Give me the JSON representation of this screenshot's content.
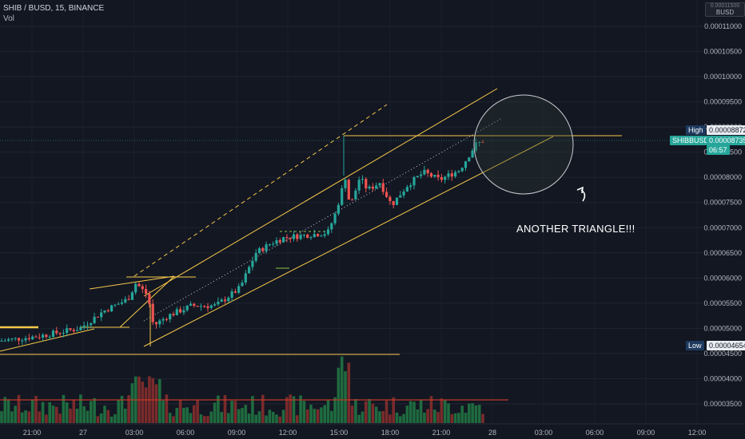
{
  "header": {
    "symbol": "SHIB / BUSD, 15, BINANCE",
    "volume_label": "Vol"
  },
  "annotation": {
    "text": "ANOTHER TRIANGLE!!!"
  },
  "price_axis": {
    "currency": "BUSD",
    "currency_top": "0.00011500"
  },
  "tags": {
    "high_label": "High",
    "high_value": "0.00008872",
    "symbol_label": "SHIBBUSD",
    "last_value": "0.00008735",
    "countdown": "06:57",
    "low_label": "Low",
    "low_value": "0.00004654"
  },
  "colors": {
    "up": "#26a69a",
    "down": "#ef5350",
    "trendline": "#f7c948",
    "vol_up": "#1f6b3f",
    "vol_down": "#7a2b2b",
    "bg": "#131722"
  },
  "chart_data": {
    "type": "candlestick",
    "title": "SHIB / BUSD, 15, BINANCE",
    "y_ticks": [
      "0.00011000",
      "0.00010500",
      "0.00010000",
      "0.00009500",
      "0.00009000",
      "0.00008500",
      "0.00008000",
      "0.00007500",
      "0.00007000",
      "0.00006500",
      "0.00006000",
      "0.00005500",
      "0.00005000",
      "0.00004500",
      "0.00004000",
      "0.00003500"
    ],
    "y_tick_values": [
      0.00011,
      0.000105,
      0.0001,
      9.5e-05,
      9e-05,
      8.5e-05,
      8e-05,
      7.5e-05,
      7e-05,
      6.5e-05,
      6e-05,
      5.5e-05,
      5e-05,
      4.5e-05,
      4e-05,
      3.5e-05
    ],
    "x_ticks": [
      "21:00",
      "27",
      "03:00",
      "06:00",
      "09:00",
      "12:00",
      "15:00",
      "18:00",
      "21:00",
      "28",
      "03:00",
      "06:00",
      "09:00",
      "12:00"
    ],
    "high": 8.872e-05,
    "low": 4.654e-05,
    "last": 8.735e-05,
    "legend": "none",
    "grid": true
  }
}
